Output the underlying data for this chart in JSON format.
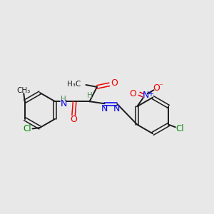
{
  "background_color": "#e8e8e8",
  "bond_color": "#1a1a1a",
  "nitrogen_color": "#0000ee",
  "oxygen_color": "#ee0000",
  "chlorine_color": "#008800",
  "hydrogen_color": "#558855",
  "figsize": [
    3.0,
    3.0
  ],
  "dpi": 100,
  "xlim": [
    0,
    10
  ],
  "ylim": [
    0,
    10
  ]
}
